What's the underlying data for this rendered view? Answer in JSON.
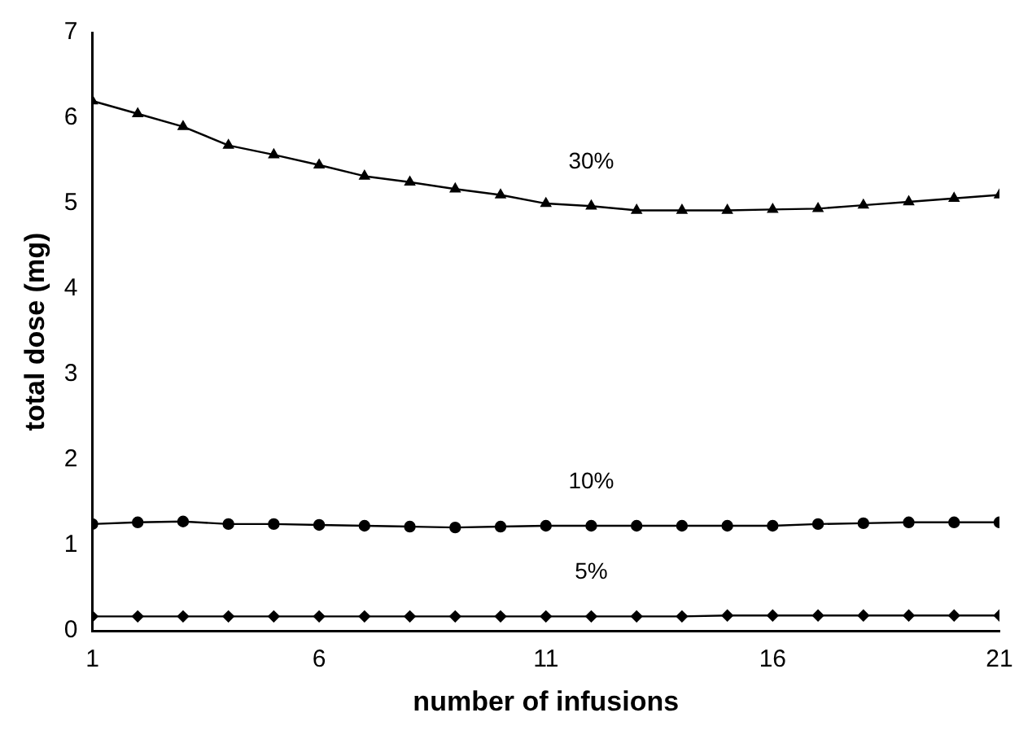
{
  "chart_data": {
    "type": "line",
    "xlabel": "number of infusions",
    "ylabel": "total dose (mg)",
    "x": [
      1,
      2,
      3,
      4,
      5,
      6,
      7,
      8,
      9,
      10,
      11,
      12,
      13,
      14,
      15,
      16,
      17,
      18,
      19,
      20,
      21
    ],
    "xlim": [
      1,
      21
    ],
    "xticks": [
      1,
      6,
      11,
      16,
      21
    ],
    "ylim": [
      0,
      7
    ],
    "yticks": [
      0,
      1,
      2,
      3,
      4,
      5,
      6,
      7
    ],
    "grid": false,
    "legend": false,
    "series": [
      {
        "name": "30%",
        "color": "#000000",
        "marker": "triangle",
        "values": [
          6.2,
          6.05,
          5.9,
          5.68,
          5.57,
          5.45,
          5.32,
          5.25,
          5.17,
          5.1,
          5.0,
          4.97,
          4.92,
          4.92,
          4.92,
          4.93,
          4.94,
          4.98,
          5.02,
          5.06,
          5.1
        ]
      },
      {
        "name": "10%",
        "color": "#000000",
        "marker": "circle",
        "values": [
          1.25,
          1.27,
          1.28,
          1.25,
          1.25,
          1.24,
          1.23,
          1.22,
          1.21,
          1.22,
          1.23,
          1.23,
          1.23,
          1.23,
          1.23,
          1.23,
          1.25,
          1.26,
          1.27,
          1.27,
          1.27
        ]
      },
      {
        "name": "5%",
        "color": "#000000",
        "marker": "diamond",
        "values": [
          0.17,
          0.17,
          0.17,
          0.17,
          0.17,
          0.17,
          0.17,
          0.17,
          0.17,
          0.17,
          0.17,
          0.17,
          0.17,
          0.17,
          0.18,
          0.18,
          0.18,
          0.18,
          0.18,
          0.18,
          0.18
        ]
      }
    ]
  }
}
